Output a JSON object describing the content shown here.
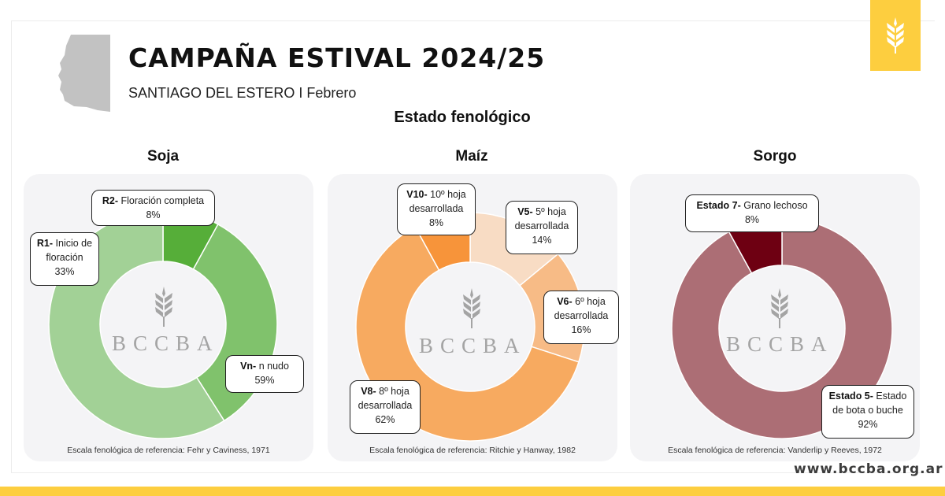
{
  "header": {
    "title": "CAMPAÑA ESTIVAL 2024/25",
    "subtitle": "SANTIAGO DEL ESTERO I Febrero",
    "section_title": "Estado fenológico"
  },
  "brand": {
    "logo_icon": "wheat-icon",
    "watermark": "BCCBA",
    "url": "www.bccba.org.ar",
    "accent_color": "#fdce3f"
  },
  "crops": [
    {
      "name": "Soja",
      "reference": "Escala fenológica de referencia: Fehr y Caviness, 1971",
      "callouts": [
        {
          "code": "R2-",
          "label": "Floración completa",
          "pct": "8%"
        },
        {
          "code": "R1-",
          "label": "Inicio de floración",
          "pct": "33%"
        },
        {
          "code": "Vn-",
          "label": "n nudo",
          "pct": "59%"
        }
      ]
    },
    {
      "name": "Maíz",
      "reference": "Escala fenológica de referencia: Ritchie y Hanway, 1982",
      "callouts": [
        {
          "code": "V10-",
          "label": "10º hoja desarrollada",
          "pct": "8%"
        },
        {
          "code": "V5-",
          "label": "5º hoja desarrollada",
          "pct": "14%"
        },
        {
          "code": "V6-",
          "label": "6º hoja desarrollada",
          "pct": "16%"
        },
        {
          "code": "V8-",
          "label": "8º hoja desarrollada",
          "pct": "62%"
        }
      ]
    },
    {
      "name": "Sorgo",
      "reference": "Escala fenológica de referencia: Vanderlip y Reeves, 1972",
      "callouts": [
        {
          "code": "Estado 7-",
          "label": "Grano lechoso",
          "pct": "8%"
        },
        {
          "code": "Estado 5-",
          "label": "Estado de bota o buche",
          "pct": "92%"
        }
      ]
    }
  ],
  "chart_data": [
    {
      "type": "pie",
      "title": "Soja",
      "categories": [
        "Vn- n nudo",
        "R1- Inicio de floración",
        "R2- Floración completa"
      ],
      "values": [
        59,
        33,
        8
      ],
      "colors": [
        "#a2d196",
        "#80c26c",
        "#56ae39"
      ],
      "donut": true
    },
    {
      "type": "pie",
      "title": "Maíz",
      "categories": [
        "V5- 5º hoja desarrollada",
        "V6- 6º hoja desarrollada",
        "V8- 8º hoja desarrollada",
        "V10- 10º hoja desarrollada"
      ],
      "values": [
        14,
        16,
        62,
        8
      ],
      "colors": [
        "#f8dcc4",
        "#f7bb86",
        "#f7aa60",
        "#f7943a"
      ],
      "donut": true
    },
    {
      "type": "pie",
      "title": "Sorgo",
      "categories": [
        "Estado 5- Estado de bota o buche",
        "Estado 7- Grano lechoso"
      ],
      "values": [
        92,
        8
      ],
      "colors": [
        "#ac6e75",
        "#6e0012"
      ],
      "donut": true
    }
  ]
}
